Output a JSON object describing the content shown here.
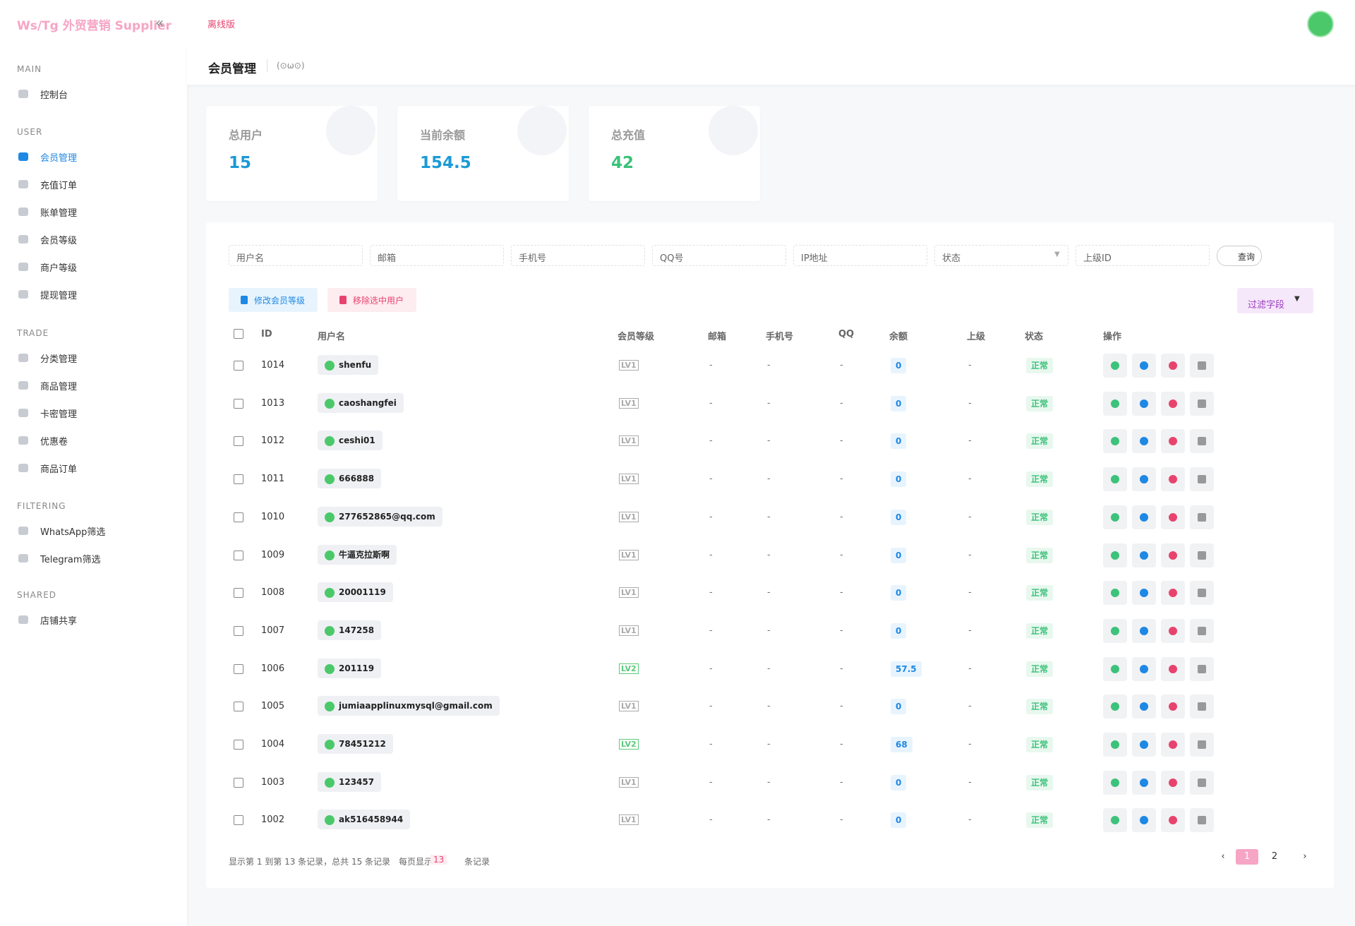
{
  "brand": "Ws/Tg 外贸营销 Supplier",
  "header": {
    "offline": "离线版"
  },
  "sidebar": [
    {
      "title": "MAIN",
      "items": [
        "控制台"
      ]
    },
    {
      "title": "USER",
      "items": [
        "会员管理",
        "充值订单",
        "账单管理",
        "会员等级",
        "商户等级",
        "提现管理"
      ]
    },
    {
      "title": "TRADE",
      "items": [
        "分类管理",
        "商品管理",
        "卡密管理",
        "优惠卷",
        "商品订单"
      ]
    },
    {
      "title": "FILTERING",
      "items": [
        "WhatsApp筛选",
        "Telegram筛选"
      ]
    },
    {
      "title": "SHARED",
      "items": [
        "店铺共享"
      ]
    }
  ],
  "page": {
    "title": "会员管理",
    "subtitle": "(⊙ω⊙)"
  },
  "stats": [
    {
      "label": "总用户",
      "value": 15
    },
    {
      "label": "当前余额",
      "value": 154.5
    },
    {
      "label": "总充值",
      "value": 42
    }
  ],
  "filters": [
    "用户名",
    "邮箱",
    "手机号",
    "QQ号",
    "IP地址",
    "状态",
    "上级ID"
  ],
  "query": "查询",
  "actions": [
    "修改会员等级",
    "移除选中用户"
  ],
  "filter_fields": "过滤字段",
  "table": {
    "columns": [
      "ID",
      "用户名",
      "会员等级",
      "邮箱",
      "手机号",
      "QQ",
      "余额",
      "上级",
      "状态",
      "操作"
    ],
    "rows": [
      [
        1014,
        "shenfu",
        "LV1",
        "-",
        "-",
        "-",
        0,
        "-",
        "正常"
      ],
      [
        1013,
        "caoshangfei",
        "LV1",
        "-",
        "-",
        "-",
        0,
        "-",
        "正常"
      ],
      [
        1012,
        "ceshi01",
        "LV1",
        "-",
        "-",
        "-",
        0,
        "-",
        "正常"
      ],
      [
        1011,
        "666888",
        "LV1",
        "-",
        "-",
        "-",
        0,
        "-",
        "正常"
      ],
      [
        1010,
        "277652865@qq.com",
        "LV1",
        "-",
        "-",
        "-",
        0,
        "-",
        "正常"
      ],
      [
        1009,
        "牛逼克拉斯啊",
        "LV1",
        "-",
        "-",
        "-",
        0,
        "-",
        "正常"
      ],
      [
        1008,
        "20001119",
        "LV1",
        "-",
        "-",
        "-",
        0,
        "-",
        "正常"
      ],
      [
        1007,
        "147258",
        "LV1",
        "-",
        "-",
        "-",
        0,
        "-",
        "正常"
      ],
      [
        1006,
        "201119",
        "LV2",
        "-",
        "-",
        "-",
        57.5,
        "-",
        "正常"
      ],
      [
        1005,
        "jumiaapplinuxmysql@gmail.com",
        "LV1",
        "-",
        "-",
        "-",
        0,
        "-",
        "正常"
      ],
      [
        1004,
        "78451212",
        "LV2",
        "-",
        "-",
        "-",
        68,
        "-",
        "正常"
      ],
      [
        1003,
        "123457",
        "LV1",
        "-",
        "-",
        "-",
        0,
        "-",
        "正常"
      ],
      [
        1002,
        "ak516458944",
        "LV1",
        "-",
        "-",
        "-",
        0,
        "-",
        "正常"
      ]
    ]
  },
  "footer": {
    "summary": "显示第 1 到第 13 条记录，总共 15 条记录",
    "per_page_prefix": "每页显示",
    "per_page": 13,
    "per_page_suffix": "条记录"
  },
  "pagination": [
    "‹",
    "1",
    "2",
    "›"
  ]
}
